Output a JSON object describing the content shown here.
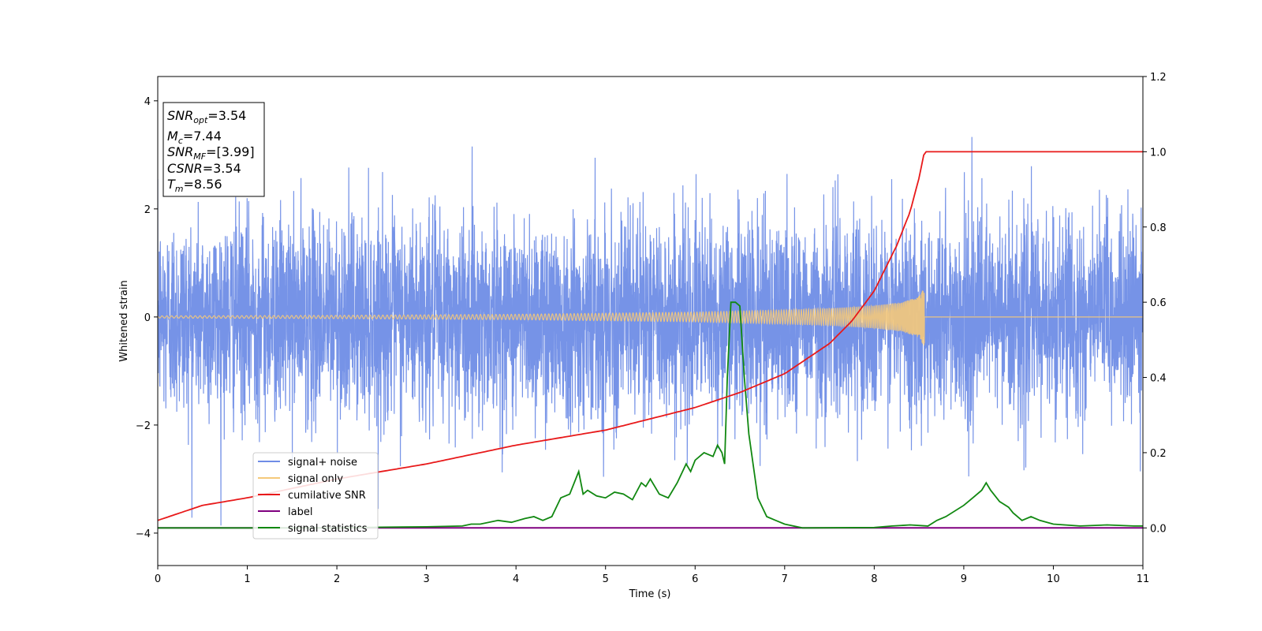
{
  "chart_data": {
    "type": "line",
    "xlabel": "Time (s)",
    "ylabel": "Whitened strain",
    "xlim": [
      0,
      11
    ],
    "ylim": [
      -4.6,
      4.45
    ],
    "y2lim": [
      -0.1,
      1.2
    ],
    "xticks": [
      "0",
      "1",
      "2",
      "3",
      "4",
      "5",
      "6",
      "7",
      "8",
      "9",
      "10",
      "11"
    ],
    "yticks": [
      "4",
      "2",
      "0",
      "−2",
      "−4"
    ],
    "y2ticks": [
      "1.2",
      "1.0",
      "0.8",
      "0.6",
      "0.4",
      "0.2",
      "0.0"
    ],
    "grid": false,
    "legend_position": "lower-left",
    "info_box": {
      "snr_opt": "=3.54",
      "mc": "=7.44",
      "snr_mf": "=[3.99]",
      "csnr": "=3.54",
      "tm": "=8.56"
    },
    "series": [
      {
        "name": "signal+ noise",
        "axis": "left",
        "color": "#6f8de6",
        "description_values": "gaussian-like noise, typical range ±2.2, peaks up to ~4.0",
        "amplitude": 1.0,
        "x_range": [
          0,
          11
        ]
      },
      {
        "name": "signal only",
        "axis": "left",
        "color": "#f5c97a",
        "x": [
          0,
          2,
          4,
          5,
          6,
          7,
          7.5,
          8,
          8.3,
          8.5,
          8.56,
          8.57,
          11
        ],
        "envelope": [
          0.02,
          0.03,
          0.05,
          0.07,
          0.09,
          0.13,
          0.16,
          0.21,
          0.27,
          0.38,
          0.55,
          0,
          0
        ]
      },
      {
        "name": "cumilative SNR",
        "axis": "right",
        "color": "#e8191a",
        "x": [
          0,
          0.5,
          1,
          2,
          3,
          4,
          5,
          5.5,
          6,
          6.5,
          7,
          7.5,
          7.75,
          8,
          8.25,
          8.4,
          8.5,
          8.56,
          11
        ],
        "values": [
          0.02,
          0.06,
          0.08,
          0.13,
          0.17,
          0.22,
          0.26,
          0.29,
          0.32,
          0.36,
          0.41,
          0.49,
          0.55,
          0.63,
          0.75,
          0.84,
          0.93,
          1.0,
          1.0
        ]
      },
      {
        "name": "label",
        "axis": "right",
        "color": "#800080",
        "x": [
          0,
          11
        ],
        "values": [
          0,
          0
        ]
      },
      {
        "name": "signal statistics",
        "axis": "right",
        "color": "#118811",
        "x": [
          0,
          1,
          2,
          2.5,
          3,
          3.4,
          3.5,
          3.6,
          3.8,
          3.95,
          4.1,
          4.2,
          4.3,
          4.4,
          4.5,
          4.6,
          4.7,
          4.75,
          4.8,
          4.9,
          5.0,
          5.1,
          5.2,
          5.3,
          5.4,
          5.45,
          5.5,
          5.6,
          5.7,
          5.8,
          5.9,
          5.95,
          6.0,
          6.1,
          6.2,
          6.25,
          6.3,
          6.33,
          6.36,
          6.4,
          6.45,
          6.5,
          6.55,
          6.6,
          6.7,
          6.8,
          6.9,
          7.0,
          7.2,
          8.0,
          8.2,
          8.4,
          8.6,
          8.7,
          8.8,
          9.0,
          9.1,
          9.2,
          9.25,
          9.3,
          9.4,
          9.5,
          9.55,
          9.65,
          9.75,
          9.85,
          10.0,
          10.3,
          10.6,
          10.9,
          11.0
        ],
        "values": [
          0.0,
          0.0,
          0.0,
          0.002,
          0.003,
          0.005,
          0.01,
          0.01,
          0.02,
          0.015,
          0.025,
          0.03,
          0.02,
          0.03,
          0.08,
          0.09,
          0.15,
          0.09,
          0.1,
          0.085,
          0.08,
          0.095,
          0.09,
          0.075,
          0.12,
          0.11,
          0.13,
          0.09,
          0.08,
          0.12,
          0.17,
          0.15,
          0.18,
          0.2,
          0.19,
          0.22,
          0.2,
          0.17,
          0.4,
          0.6,
          0.6,
          0.59,
          0.4,
          0.25,
          0.08,
          0.03,
          0.02,
          0.01,
          0.0,
          0.001,
          0.005,
          0.008,
          0.005,
          0.02,
          0.03,
          0.06,
          0.08,
          0.1,
          0.12,
          0.1,
          0.07,
          0.055,
          0.04,
          0.02,
          0.03,
          0.02,
          0.01,
          0.005,
          0.008,
          0.005,
          0.005
        ]
      }
    ]
  }
}
